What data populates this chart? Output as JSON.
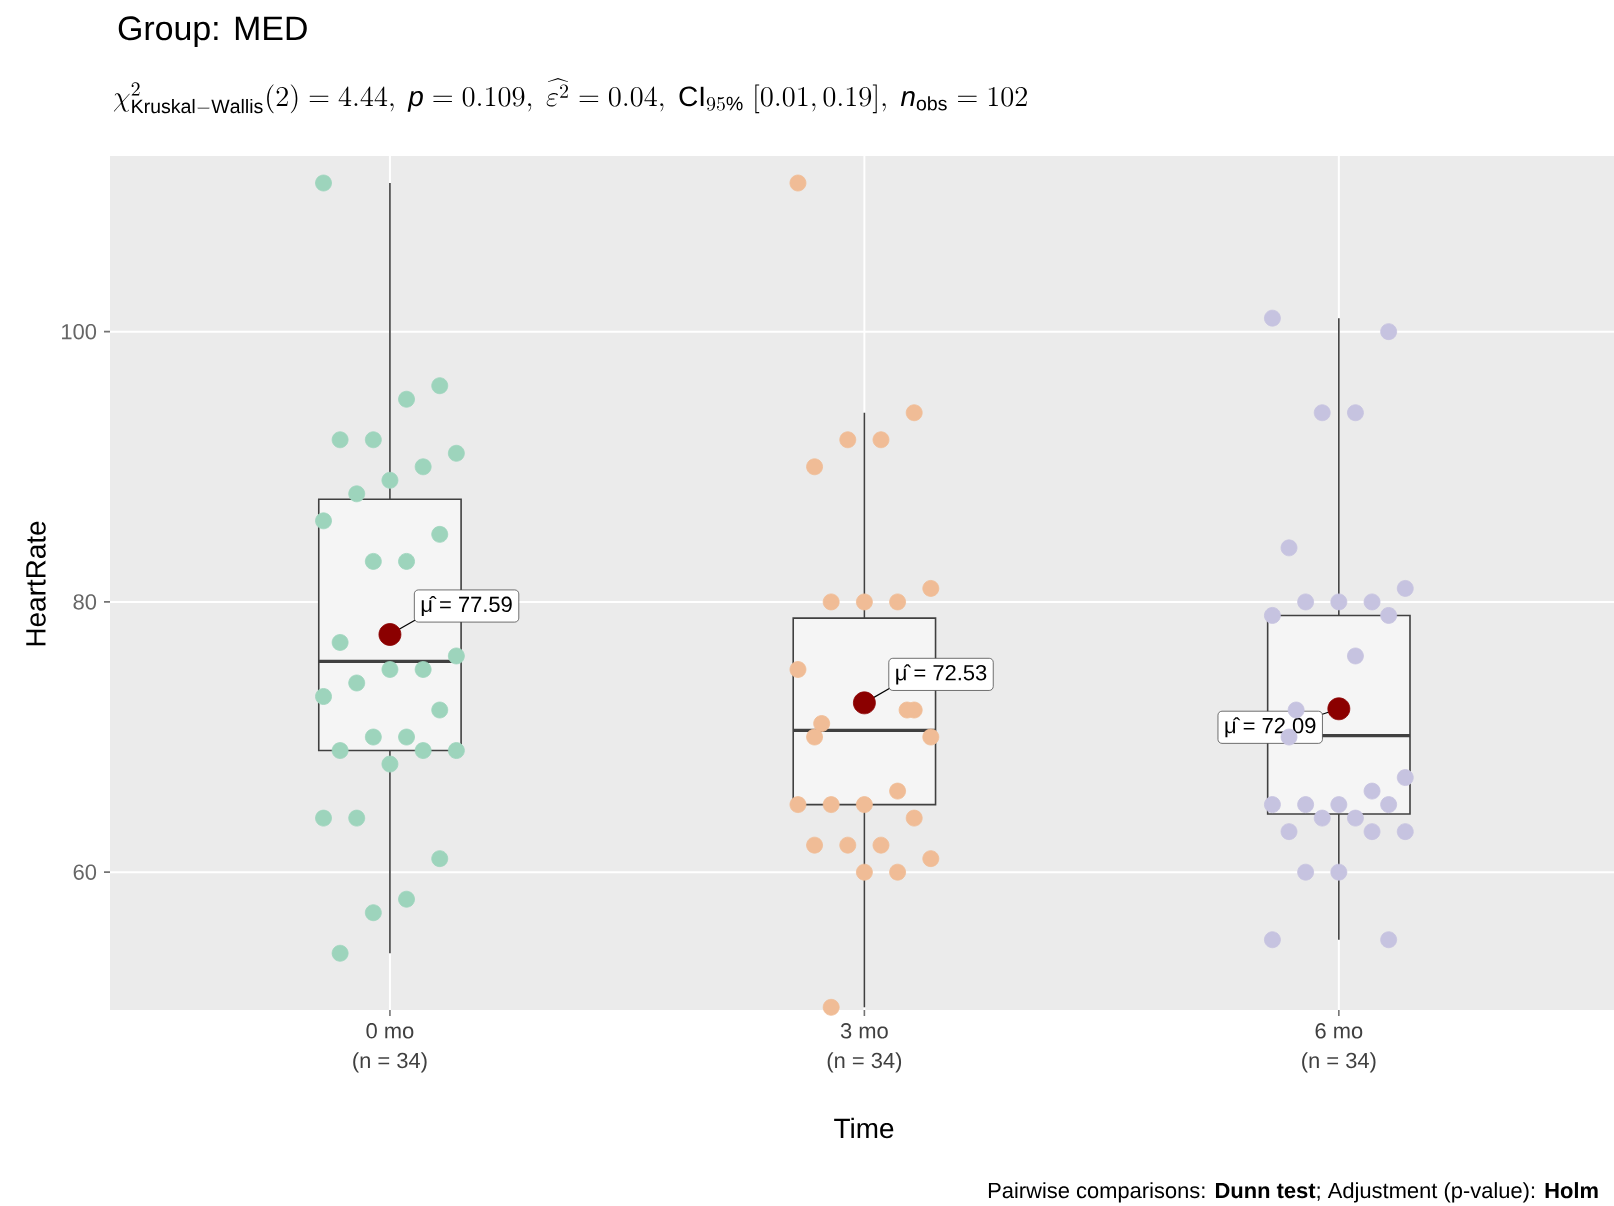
{
  "chart_data": {
    "type": "box",
    "title": "Group: MED",
    "subtitle": "\\chi^{2}_{\\mathrm{Kruskal{-}Wallis}}(2) = 4.44,\\ \\mathit{p} = 0.109,\\ \\widehat{\\varepsilon^{2}} = 0.04,\\ \\mathrm{CI}_{95\\%}\\ [0.01, 0.19],\\ \\mathit{n}_{\\mathrm{obs}} = 102",
    "xlabel": "Time",
    "ylabel": "HeartRate",
    "categories": [
      "0 mo",
      "3 mo",
      "6 mo"
    ],
    "boxes": [
      {
        "low": 54,
        "q1": 69,
        "median": 75.6,
        "q3": 87.6,
        "high": 111
      },
      {
        "low": 50,
        "q1": 65,
        "median": 70.5,
        "q3": 78.8,
        "high": 94
      },
      {
        "low": 55,
        "q1": 64.3,
        "median": 70.1,
        "q3": 79,
        "high": 101
      }
    ],
    "series": [
      {
        "type": "scatter",
        "color": "#8b0000",
        "x": [
          "0 mo",
          "3 mo",
          "6 mo"
        ],
        "values": [
          77.59,
          72.53,
          72.09
        ]
      },
      {
        "type": "scatter",
        "color": "#9dd4bc",
        "x": [
          "0 mo",
          "0 mo",
          "0 mo",
          "0 mo",
          "0 mo",
          "0 mo",
          "0 mo",
          "0 mo",
          "0 mo",
          "0 mo",
          "0 mo",
          "0 mo",
          "0 mo",
          "0 mo",
          "0 mo",
          "0 mo",
          "0 mo",
          "0 mo",
          "0 mo",
          "0 mo",
          "0 mo",
          "0 mo",
          "0 mo",
          "0 mo",
          "0 mo",
          "0 mo",
          "0 mo",
          "0 mo",
          "0 mo",
          "0 mo",
          "0 mo",
          "0 mo"
        ],
        "values": [
          111,
          96,
          95,
          92,
          92,
          91,
          90,
          89,
          88,
          86,
          85,
          83,
          83,
          77,
          76,
          75,
          75,
          74,
          73,
          72,
          70,
          70,
          69,
          69,
          69,
          68,
          64,
          64,
          61,
          58,
          57,
          54
        ]
      },
      {
        "type": "scatter",
        "color": "#f0bc96",
        "x": [
          "3 mo",
          "3 mo",
          "3 mo",
          "3 mo",
          "3 mo",
          "3 mo",
          "3 mo",
          "3 mo",
          "3 mo",
          "3 mo",
          "3 mo",
          "3 mo",
          "3 mo",
          "3 mo",
          "3 mo",
          "3 mo",
          "3 mo",
          "3 mo",
          "3 mo",
          "3 mo",
          "3 mo",
          "3 mo",
          "3 mo",
          "3 mo",
          "3 mo",
          "3 mo",
          "3 mo"
        ],
        "values": [
          111,
          94,
          92,
          92,
          90,
          81,
          80,
          80,
          80,
          75,
          72,
          72,
          71,
          70,
          70,
          66,
          65,
          65,
          65,
          64,
          62,
          62,
          62,
          61,
          60,
          60,
          50
        ]
      },
      {
        "type": "scatter",
        "color": "#c6c3e0",
        "x": [
          "6 mo",
          "6 mo",
          "6 mo",
          "6 mo",
          "6 mo",
          "6 mo",
          "6 mo",
          "6 mo",
          "6 mo",
          "6 mo",
          "6 mo",
          "6 mo",
          "6 mo",
          "6 mo",
          "6 mo",
          "6 mo",
          "6 mo",
          "6 mo",
          "6 mo",
          "6 mo",
          "6 mo",
          "6 mo",
          "6 mo",
          "6 mo",
          "6 mo",
          "6 mo",
          "6 mo",
          "6 mo",
          "6 mo"
        ],
        "values": [
          101,
          100,
          94,
          94,
          84,
          81,
          80,
          80,
          80,
          79,
          79,
          76,
          72,
          70,
          67,
          66,
          65,
          65,
          65,
          65,
          64,
          64,
          63,
          63,
          63,
          60,
          60,
          55,
          55
        ]
      }
    ],
    "ylim": [
      49.8,
      113
    ],
    "yticks": [
      60,
      80,
      100
    ],
    "grid": true,
    "marker": "circle",
    "annotations": [
      {
        "text": "μ̂ = 77.59",
        "x": "0 mo",
        "y": 77.59
      },
      {
        "text": "μ̂ = 72.53",
        "x": "3 mo",
        "y": 72.53
      },
      {
        "text": "μ̂ = 72.09",
        "x": "6 mo",
        "y": 72.09
      },
      "(n = 34)",
      "(n = 34)",
      "(n = 34)",
      "Pairwise comparisons: **Dunn test**; Adjustment (p-value): **Holm**"
    ]
  }
}
